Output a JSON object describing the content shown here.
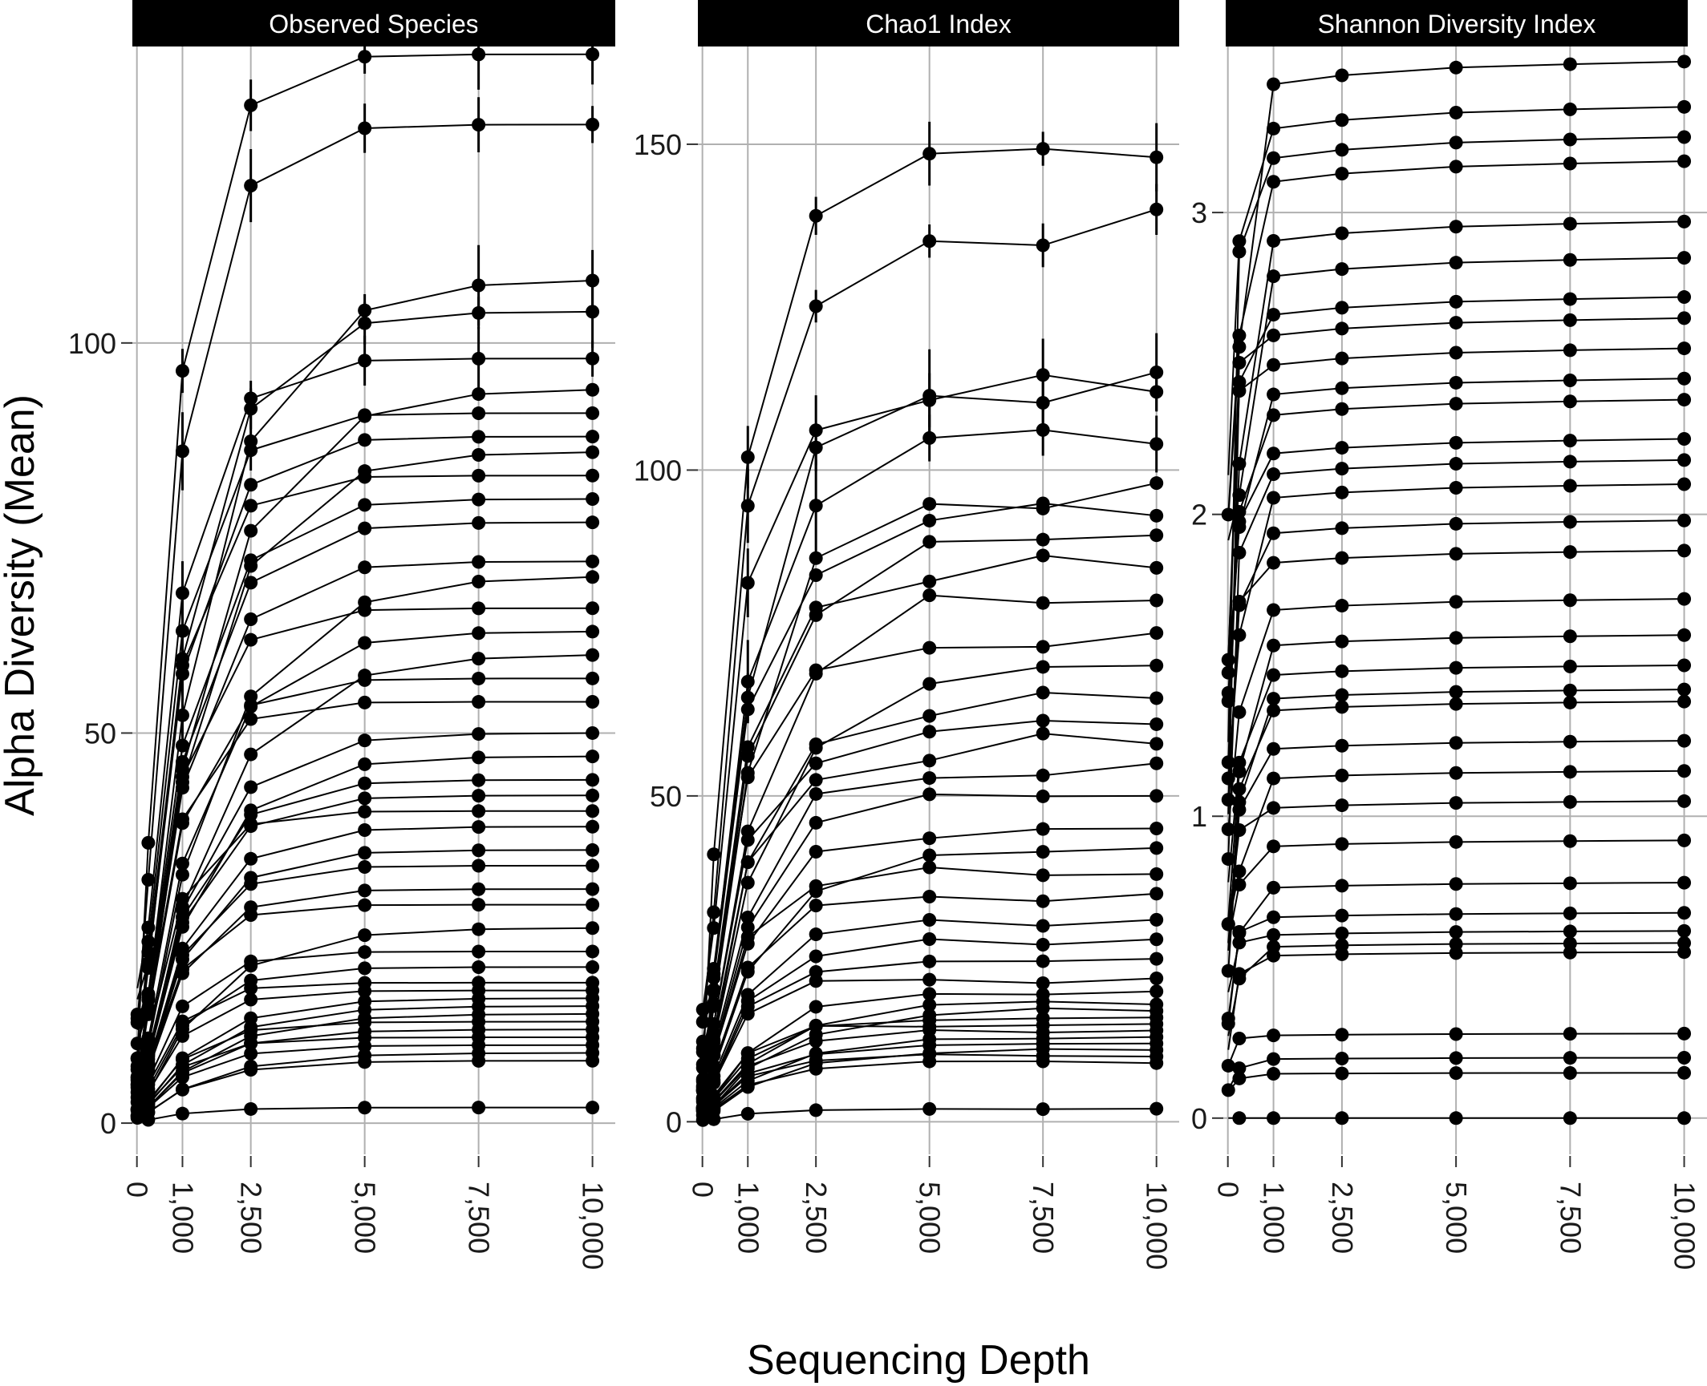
{
  "chart_data": {
    "type": "line",
    "xlabel": "Sequencing Depth",
    "ylabel": "Alpha Diversity (Mean)",
    "grid": true,
    "legend": "none",
    "colors": {
      "line": "#000000",
      "grid": "#b0b0b0",
      "strip_bg": "#000000",
      "strip_text": "#ffffff"
    },
    "x_breaks": [
      0,
      1000,
      2500,
      5000,
      7500,
      10000
    ],
    "x_tick_labels": [
      "0",
      "1,000",
      "2,500",
      "5,000",
      "7,500",
      "10,000"
    ],
    "x_sample_depths": [
      10,
      250,
      1000,
      2500,
      5000,
      7500,
      10000
    ],
    "xlim": [
      -100,
      10500
    ],
    "panels": [
      {
        "title": "Observed Species",
        "ylim": [
          -4,
          138
        ],
        "y_breaks": [
          0,
          50,
          100
        ],
        "y_tick_labels": [
          "0",
          "50",
          "100"
        ],
        "final_values": [
          2,
          8,
          9,
          10,
          11,
          12,
          13,
          14,
          15,
          16,
          17,
          18,
          20,
          22,
          25,
          28,
          30,
          33,
          35,
          38,
          40,
          42,
          44,
          47,
          50,
          54,
          57,
          60,
          63,
          66,
          70,
          72,
          77,
          80,
          83,
          86,
          88,
          91,
          94,
          98,
          104,
          108,
          128,
          137
        ],
        "max_shown": 137,
        "min_shown": 1
      },
      {
        "title": "Chao1 Index",
        "ylim": [
          -5,
          165
        ],
        "y_breaks": [
          0,
          50,
          100,
          150
        ],
        "y_tick_labels": [
          "0",
          "50",
          "100",
          "150"
        ],
        "final_values": [
          2,
          9,
          10,
          11,
          12,
          13,
          14,
          15,
          16,
          17,
          18,
          20,
          22,
          25,
          28,
          31,
          35,
          38,
          42,
          45,
          50,
          55,
          58,
          61,
          65,
          70,
          75,
          80,
          85,
          90,
          93,
          98,
          104,
          112,
          115,
          140,
          148
        ],
        "max_shown": 148,
        "min_shown": 1
      },
      {
        "title": "Shannon Diversity Index",
        "ylim": [
          -0.12,
          3.55
        ],
        "y_breaks": [
          0,
          1,
          2,
          3
        ],
        "y_tick_labels": [
          "0",
          "1",
          "2",
          "3"
        ],
        "final_values": [
          0,
          0.15,
          0.2,
          0.28,
          0.55,
          0.58,
          0.62,
          0.68,
          0.78,
          0.92,
          1.05,
          1.15,
          1.25,
          1.38,
          1.42,
          1.5,
          1.6,
          1.72,
          1.88,
          1.98,
          2.1,
          2.18,
          2.25,
          2.38,
          2.45,
          2.55,
          2.65,
          2.72,
          2.85,
          2.97,
          3.17,
          3.25,
          3.35,
          3.5
        ],
        "max_shown": 3.5,
        "min_shown": 0
      }
    ]
  }
}
